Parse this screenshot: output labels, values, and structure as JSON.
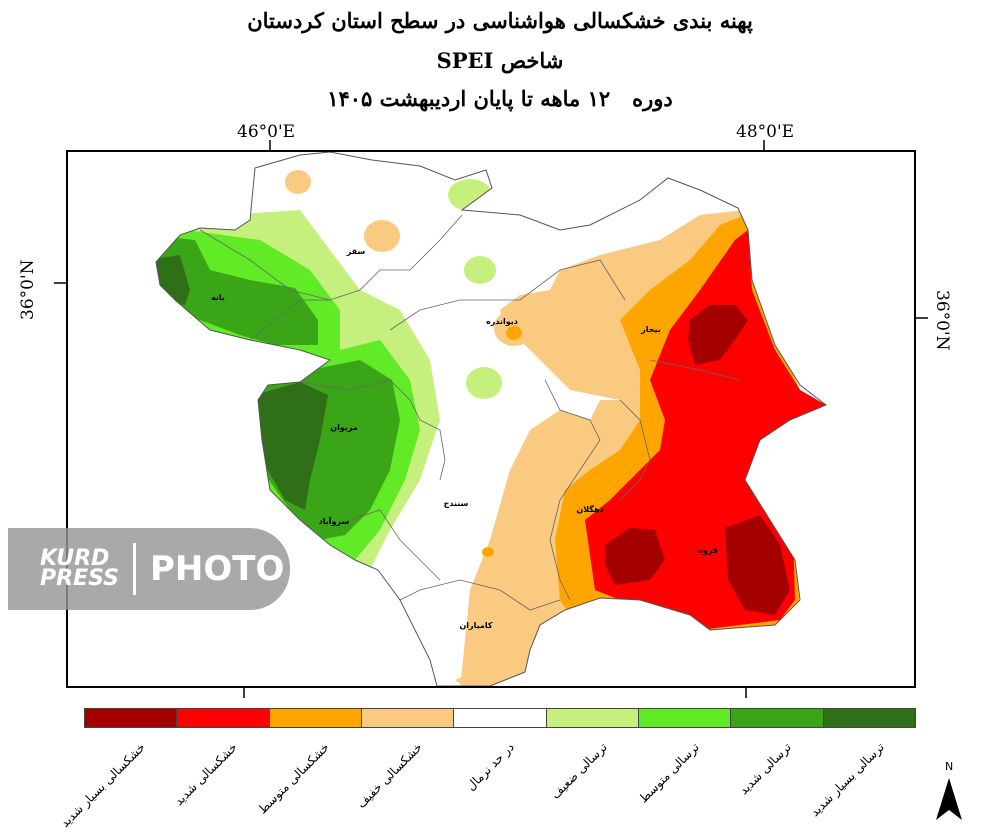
{
  "title": {
    "line1": "پهنه بندی خشکسالی هواشناسی در سطح استان کردستان",
    "line2": "شاخص SPEI",
    "line3_part1": "دوره",
    "line3_part2": "۱۲ ماهه تا پایان اردیبهشت ۱۴۰۵"
  },
  "coordinates": {
    "top_left": "46°0'E",
    "top_right": "48°0'E",
    "left": "36°0'N",
    "right": "36°0'N"
  },
  "cities": {
    "saqqez": "سقز",
    "baneh": "بانه",
    "divandarreh": "دیواندره",
    "bijar": "بیجار",
    "marivan": "مریوان",
    "sanandaj": "سنندج",
    "dehgolan": "دهگلان",
    "sarvabad": "سروآباد",
    "qorveh": "قروه",
    "kamyaran": "کامیاران"
  },
  "legend": [
    {
      "label": "خشکسالی بسیار شدید",
      "color": "#a50000"
    },
    {
      "label": "خشکسالی شدید",
      "color": "#ff0000"
    },
    {
      "label": "خشکسالی متوسط",
      "color": "#ffa500"
    },
    {
      "label": "خشکسالی خفیف",
      "color": "#f9ca7f"
    },
    {
      "label": "در حد نرمال",
      "color": "#ffffff"
    },
    {
      "label": "ترسالی ضعیف",
      "color": "#c6f07e"
    },
    {
      "label": "ترسالی متوسط",
      "color": "#61ea26"
    },
    {
      "label": "ترسالی شدید",
      "color": "#3aa617"
    },
    {
      "label": "ترسالی بسیار شدید",
      "color": "#2f6f17"
    }
  ],
  "watermark": {
    "logo_top": "KURD",
    "logo_bottom": "PRESS",
    "text": "PHOTO"
  },
  "north_label": "N"
}
